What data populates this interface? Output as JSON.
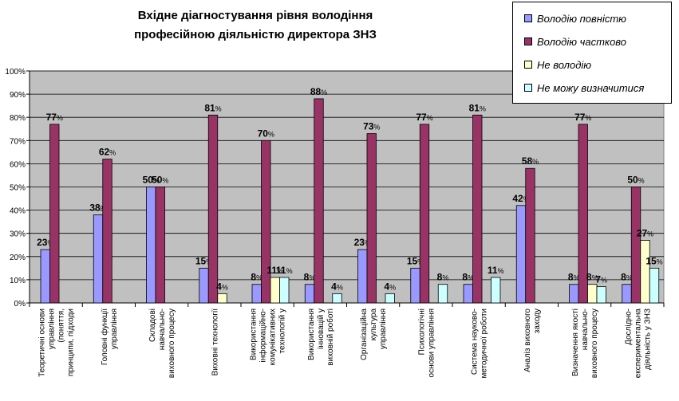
{
  "title": {
    "line1": "Вхідне діагностування рівня володіння",
    "line2": "професійною діяльністю  директора ЗНЗ"
  },
  "chart_data": {
    "type": "bar",
    "title": "Вхідне діагностування рівня володіння професійною діяльністю  директора ЗНЗ",
    "ylim": [
      0,
      100
    ],
    "yticks": [
      "0%",
      "10%",
      "20%",
      "30%",
      "40%",
      "50%",
      "60%",
      "70%",
      "80%",
      "90%",
      "100%"
    ],
    "grid": true,
    "legend_position": "top-right",
    "categories": [
      [
        "Теоретичні основи",
        "управління",
        "(поняття,",
        "принципи, підходи"
      ],
      [
        "Головні функції",
        "управління"
      ],
      [
        "Складові",
        "навчально-",
        "виховного процесу"
      ],
      [
        "Виховні технології"
      ],
      [
        "Використання",
        "інформаційно-",
        "комунікативних",
        "технологій у"
      ],
      [
        "Використання",
        "інновацій у",
        "виховній роботі"
      ],
      [
        "Організаційна",
        "культура",
        "управління"
      ],
      [
        "Психологічні",
        "основи управління"
      ],
      [
        "Система науково-",
        "методичної роботи"
      ],
      [
        "Аналіз виховного",
        "заходу"
      ],
      [
        "Визначення якості",
        "навчально-",
        "виховного процесу"
      ],
      [
        "Дослідно-",
        "експериментальна",
        "діяльність у ЗНЗ"
      ]
    ],
    "series": [
      {
        "name": "Володію повністю",
        "color": "#9999FF",
        "values": [
          23,
          38,
          50,
          15,
          8,
          8,
          23,
          15,
          8,
          42,
          8,
          8
        ],
        "labels": [
          "23%",
          "38%",
          "50%",
          "15%",
          "8%",
          "8%",
          "23%",
          "15%",
          "8%",
          "42%",
          "8%",
          "8%"
        ]
      },
      {
        "name": "Володію частково",
        "color": "#993366",
        "values": [
          77,
          62,
          50,
          81,
          70,
          88,
          73,
          77,
          81,
          58,
          77,
          50
        ],
        "labels": [
          "77%",
          "62%",
          "50%",
          "81%",
          "70%",
          "88%",
          "73%",
          "77%",
          "81%",
          "58%",
          "77%",
          "50%"
        ]
      },
      {
        "name": "Не володію",
        "color": "#FFFFCC",
        "values": [
          null,
          null,
          null,
          4,
          11,
          null,
          null,
          null,
          null,
          null,
          8,
          27
        ],
        "labels": [
          null,
          null,
          null,
          "4%",
          "11%",
          null,
          null,
          null,
          null,
          null,
          "8%",
          "27%"
        ]
      },
      {
        "name": "Не можу визначитися",
        "color": "#CCFFFF",
        "values": [
          null,
          null,
          null,
          null,
          11,
          4,
          4,
          8,
          11,
          null,
          7,
          15
        ],
        "labels": [
          null,
          null,
          null,
          null,
          "11%",
          "4%",
          "4%",
          "8%",
          "11%",
          null,
          "7%",
          "15%"
        ]
      }
    ]
  }
}
